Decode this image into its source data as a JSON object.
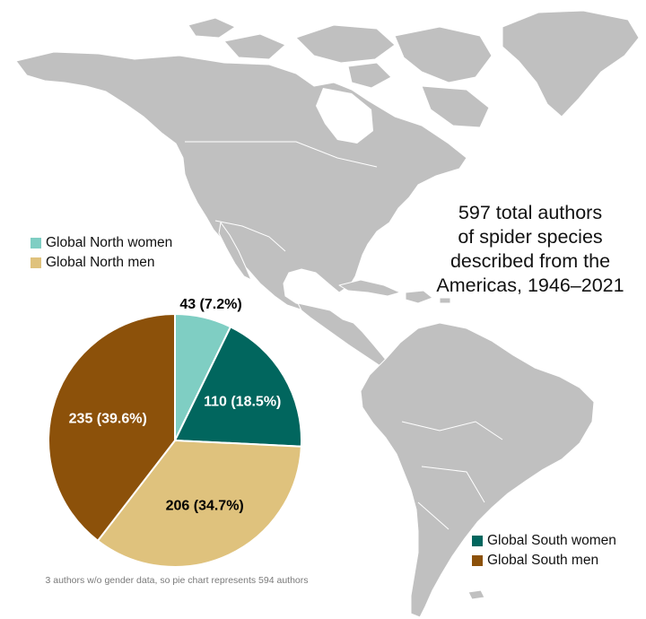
{
  "title_lines": [
    "597 total authors",
    "of spider species",
    "described from the",
    "Americas, 1946–2021"
  ],
  "legend": [
    {
      "label": "Global North women",
      "color": "#7fcec3"
    },
    {
      "label": "Global North men",
      "color": "#dfc27d"
    },
    {
      "label": "Global South women",
      "color": "#01665e"
    },
    {
      "label": "Global South men",
      "color": "#8c510a"
    }
  ],
  "note": "3 authors w/o gender data, so pie chart represents 594 authors",
  "map": {
    "land_color": "#c0c0c0",
    "border_color": "#ffffff"
  },
  "chart_data": {
    "type": "pie",
    "total": 594,
    "slices": [
      {
        "name": "Global North women",
        "value": 43,
        "label": "43 (7.2%)",
        "color": "#7fcec3",
        "label_color": "#000000"
      },
      {
        "name": "Global South women",
        "value": 110,
        "label": "110 (18.5%)",
        "color": "#01665e",
        "label_color": "#ffffff"
      },
      {
        "name": "Global North men",
        "value": 206,
        "label": "206 (34.7%)",
        "color": "#dfc27d",
        "label_color": "#000000"
      },
      {
        "name": "Global South men",
        "value": 235,
        "label": "235 (39.6%)",
        "color": "#8c510a",
        "label_color": "#ffffff"
      }
    ]
  }
}
